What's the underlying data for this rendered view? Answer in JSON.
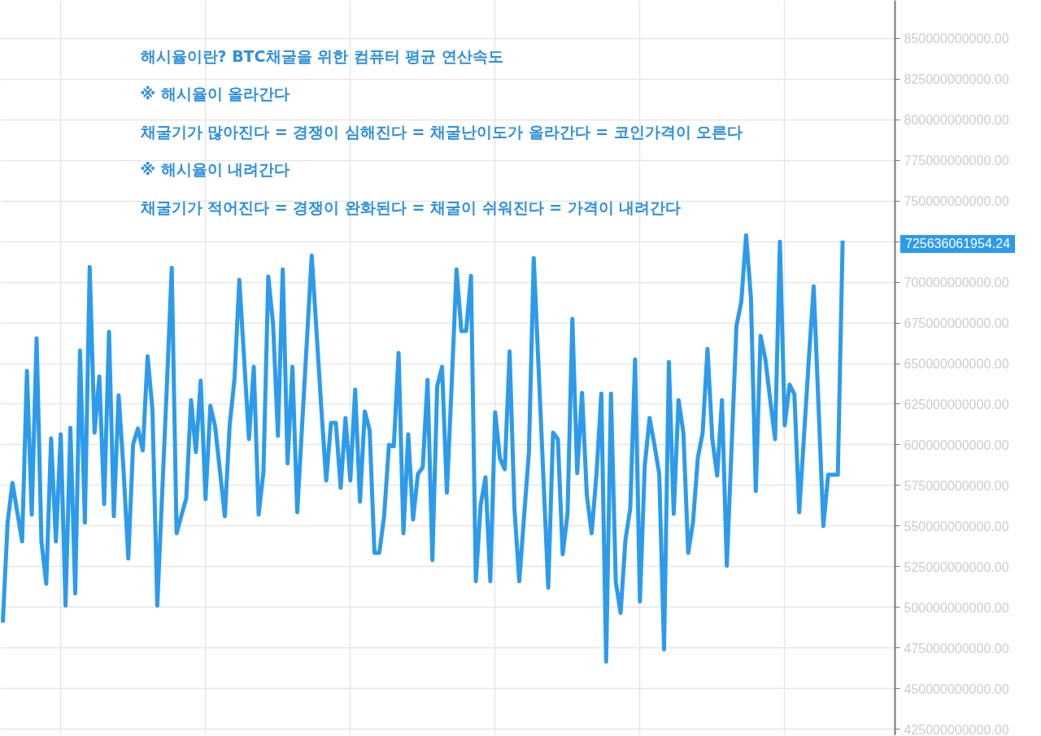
{
  "chart_data": {
    "type": "line",
    "annotations": [
      "해시율이란? BTC채굴을 위한 컴퓨터 평균 연산속도",
      "※ 해시율이 올라간다",
      "채굴기가 많아진다 = 경쟁이 심해진다 = 채굴난이도가 올라간다 = 코인가격이 오른다",
      "※ 해시율이 내려간다",
      "채굴기가 적어진다 = 경쟁이 완화된다 = 채굴이 쉬워진다 = 가격이 내려간다",
      "725636061954.24"
    ],
    "categories": [
      null,
      null,
      null,
      null,
      null,
      null,
      null,
      null,
      null,
      null,
      null,
      null,
      null,
      null,
      null,
      null,
      null,
      null,
      null,
      null,
      null,
      null,
      null,
      null,
      null,
      null,
      null,
      null,
      null,
      null,
      null,
      null,
      null,
      null,
      null,
      null,
      null,
      null,
      null,
      null,
      null,
      null,
      null,
      null,
      null,
      null,
      null,
      null,
      null,
      null,
      null,
      null,
      null,
      null,
      null,
      null,
      null,
      null,
      null,
      null,
      null,
      null,
      null,
      null,
      null,
      null,
      null,
      null,
      null,
      null,
      null,
      null,
      null,
      null,
      null,
      null,
      null,
      null,
      null,
      null,
      null,
      null,
      null,
      null,
      null,
      null,
      null,
      null,
      null,
      null,
      null,
      null,
      null,
      null,
      null,
      null,
      null,
      null,
      null,
      null,
      null,
      null,
      null,
      null,
      null,
      null,
      null,
      null,
      null,
      null,
      null,
      null,
      null,
      null,
      null,
      null,
      null,
      null,
      null,
      null,
      null,
      null,
      null,
      null,
      null,
      null,
      null,
      null,
      null,
      null,
      null,
      null,
      null,
      null,
      null,
      null,
      null,
      null,
      null,
      null,
      null,
      null,
      null,
      null,
      null,
      null,
      null,
      null,
      null,
      null,
      null,
      null,
      null,
      null,
      null,
      null,
      null,
      null,
      null,
      null,
      null,
      null,
      null,
      null,
      null,
      null,
      null,
      null,
      null,
      null,
      null,
      null,
      null,
      null,
      null
    ],
    "series": [
      {
        "color": "#2d9bec",
        "values": [
          490500000000.0,
          552500000000.0,
          576500000000.0,
          558500000000.0,
          540500000000.0,
          645500000000.0,
          557000000000.0,
          665500000000.0,
          540500000000.0,
          514500000000.0,
          604000000000.0,
          540500000000.0,
          606500000000.0,
          501000000000.0,
          610500000000.0,
          508500000000.0,
          658000000000.0,
          552000000000.0,
          709500000000.0,
          607500000000.0,
          642000000000.0,
          563500000000.0,
          669500000000.0,
          556000000000.0,
          630500000000.0,
          585000000000.0,
          530000000000.0,
          600500000000.0,
          610000000000.0,
          596500000000.0,
          654500000000.0,
          621500000000.0,
          501000000000.0,
          569000000000.0,
          637000000000.0,
          709000000000.0,
          545500000000.0,
          556500000000.0,
          567000000000.0,
          627500000000.0,
          595500000000.0,
          639500000000.0,
          566500000000.0,
          624000000000.0,
          611000000000.0,
          583500000000.0,
          556000000000.0,
          612000000000.0,
          640500000000.0,
          701500000000.0,
          652500000000.0,
          603500000000.0,
          648000000000.0,
          557000000000.0,
          583500000000.0,
          703500000000.0,
          674000000000.0,
          605500000000.0,
          708000000000.0,
          588500000000.0,
          648000000000.0,
          558500000000.0,
          611500000000.0,
          664000000000.0,
          716500000000.0,
          669500000000.0,
          622000000000.0,
          578000000000.0,
          613500000000.0,
          613500000000.0,
          573500000000.0,
          616500000000.0,
          578000000000.0,
          634000000000.0,
          565000000000.0,
          620500000000.0,
          609000000000.0,
          533500000000.0,
          533500000000.0,
          556000000000.0,
          600000000000.0,
          599000000000.0,
          656500000000.0,
          545500000000.0,
          606500000000.0,
          554000000000.0,
          582000000000.0,
          586000000000.0,
          640000000000.0,
          529000000000.0,
          636000000000.0,
          648000000000.0,
          570500000000.0,
          637000000000.0,
          708000000000.0,
          670000000000.0,
          670000000000.0,
          704000000000.0,
          516000000000.0,
          563000000000.0,
          580000000000.0,
          516000000000.0,
          620000000000.0,
          591500000000.0,
          585000000000.0,
          657500000000.0,
          561000000000.0,
          516000000000.0,
          556000000000.0,
          595500000000.0,
          715000000000.0,
          647500000000.0,
          580000000000.0,
          512000000000.0,
          607500000000.0,
          603500000000.0,
          532500000000.0,
          557500000000.0,
          677500000000.0,
          582500000000.0,
          632000000000.0,
          569000000000.0,
          545500000000.0,
          582000000000.0,
          631500000000.0,
          466500000000.0,
          631500000000.0,
          515500000000.0,
          496500000000.0,
          541500000000.0,
          561000000000.0,
          652500000000.0,
          503500000000.0,
          587000000000.0,
          616500000000.0,
          600000000000.0,
          582000000000.0,
          474000000000.0,
          651000000000.0,
          557500000000.0,
          627500000000.0,
          607500000000.0,
          533500000000.0,
          552500000000.0,
          592000000000.0,
          607500000000.0,
          659000000000.0,
          603500000000.0,
          581000000000.0,
          627500000000.0,
          525500000000.0,
          599000000000.0,
          673000000000.0,
          688000000000.0,
          729000000000.0,
          690500000000.0,
          571500000000.0,
          667000000000.0,
          652500000000.0,
          627500000000.0,
          603500000000.0,
          725000000000.0,
          612000000000.0,
          637000000000.0,
          631000000000.0,
          558500000000.0,
          605500000000.0,
          653000000000.0,
          697500000000.0,
          624000000000.0,
          550000000000.0,
          581500000000.0,
          581500000000.0,
          581500000000.0,
          725636061954.24
        ]
      }
    ],
    "ylim": [
      421000000000.0,
      873500000000.0
    ],
    "yticks": [
      {
        "value": 425000000000.0,
        "label": "425000000000.00"
      },
      {
        "value": 450000000000.0,
        "label": "450000000000.00"
      },
      {
        "value": 475000000000.0,
        "label": "475000000000.00"
      },
      {
        "value": 500000000000.0,
        "label": "500000000000.00"
      },
      {
        "value": 525000000000.0,
        "label": "525000000000.00"
      },
      {
        "value": 550000000000.0,
        "label": "550000000000.00"
      },
      {
        "value": 575000000000.0,
        "label": "575000000000.00"
      },
      {
        "value": 600000000000.0,
        "label": "600000000000.00"
      },
      {
        "value": 625000000000.0,
        "label": "625000000000.00"
      },
      {
        "value": 650000000000.0,
        "label": "650000000000.00"
      },
      {
        "value": 675000000000.0,
        "label": "675000000000.00"
      },
      {
        "value": 700000000000.0,
        "label": "700000000000.00"
      },
      {
        "value": 725000000000.0,
        "label": null
      },
      {
        "value": 750000000000.0,
        "label": "750000000000.00"
      },
      {
        "value": 775000000000.0,
        "label": "775000000000.00"
      },
      {
        "value": 800000000000.0,
        "label": "800000000000.00"
      },
      {
        "value": 825000000000.0,
        "label": "825000000000.00"
      },
      {
        "value": 850000000000.0,
        "label": "850000000000.00"
      }
    ],
    "grid": true,
    "tick_labels": "y",
    "marker": "none",
    "line_style": "solid"
  }
}
